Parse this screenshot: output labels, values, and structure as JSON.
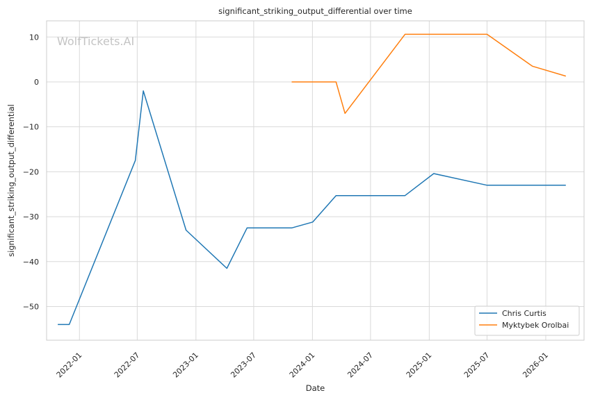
{
  "chart_data": {
    "type": "line",
    "title": "significant_striking_output_differential over time",
    "xlabel": "Date",
    "ylabel": "significant_striking_output_differential",
    "watermark": "WolfTickets.AI",
    "x_ticks": [
      "2022-01",
      "2022-07",
      "2023-01",
      "2023-07",
      "2024-01",
      "2024-07",
      "2025-01",
      "2025-07",
      "2026-01"
    ],
    "y_ticks": [
      10,
      0,
      -10,
      -20,
      -30,
      -40,
      -50
    ],
    "y_tick_labels": [
      "10",
      "0",
      "−10",
      "−20",
      "−30",
      "−40",
      "−50"
    ],
    "xlim": [
      "2021-09-20",
      "2026-05-01"
    ],
    "ylim": [
      -57.5,
      13.6
    ],
    "grid": true,
    "legend_position": "lower-right",
    "series": [
      {
        "name": "Chris Curtis",
        "color": "#1f77b4",
        "points": [
          [
            "2021-10-25",
            -54
          ],
          [
            "2021-11-30",
            -54
          ],
          [
            "2022-06-25",
            -17.5
          ],
          [
            "2022-07-20",
            -2
          ],
          [
            "2022-12-01",
            -33
          ],
          [
            "2023-04-08",
            -41.5
          ],
          [
            "2023-06-10",
            -32.5
          ],
          [
            "2023-10-28",
            -32.5
          ],
          [
            "2024-01-02",
            -31.2
          ],
          [
            "2024-03-15",
            -25.3
          ],
          [
            "2024-10-17",
            -25.3
          ],
          [
            "2025-01-15",
            -20.4
          ],
          [
            "2025-07-01",
            -23
          ],
          [
            "2026-03-05",
            -23
          ]
        ]
      },
      {
        "name": "Myktybek Orolbai",
        "color": "#ff7f0e",
        "points": [
          [
            "2023-10-28",
            0
          ],
          [
            "2024-03-15",
            0
          ],
          [
            "2024-04-12",
            -7
          ],
          [
            "2024-10-17",
            10.6
          ],
          [
            "2025-07-01",
            10.6
          ],
          [
            "2025-11-20",
            3.5
          ],
          [
            "2026-03-05",
            1.3
          ]
        ]
      }
    ]
  }
}
